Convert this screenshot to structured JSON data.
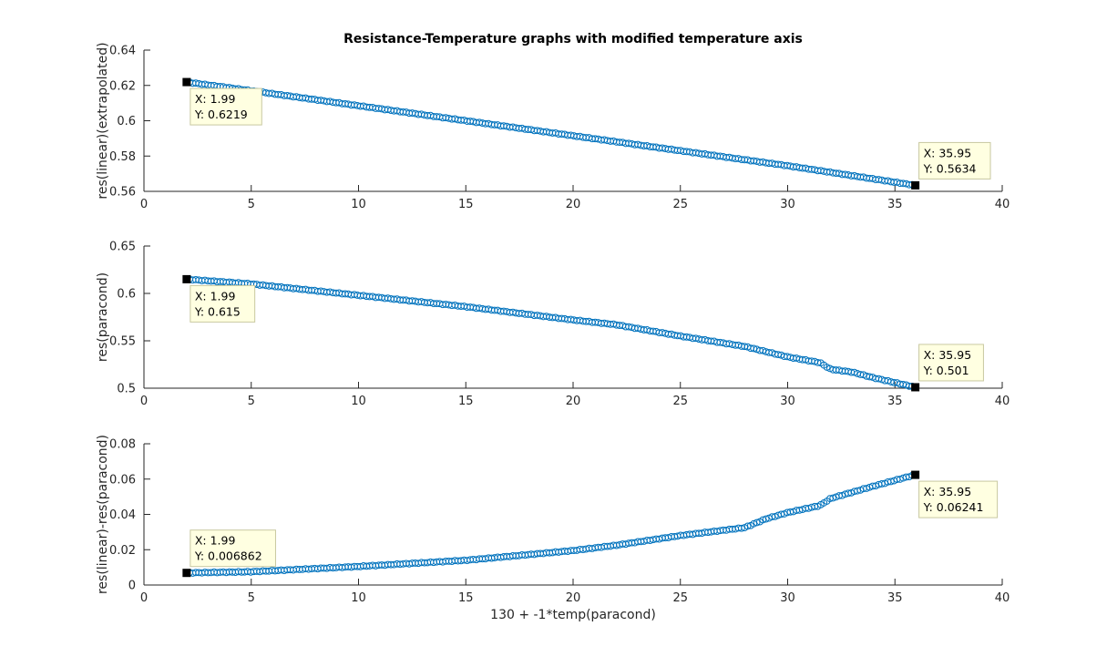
{
  "title": "Resistance-Temperature graphs with modified temperature axis",
  "colors": {
    "series": "#0072BD",
    "tip_bg": "#FFFFE1",
    "tip_border": "#C8C8A0",
    "axis": "#262626"
  },
  "chart_data": [
    {
      "type": "scatter",
      "title": "Resistance-Temperature graphs with modified temperature axis",
      "xlabel": "",
      "ylabel": "res(linear)(extrapolated)",
      "xlim": [
        0,
        40
      ],
      "ylim": [
        0.56,
        0.64
      ],
      "xticks": [
        "0",
        "5",
        "10",
        "15",
        "20",
        "25",
        "30",
        "35",
        "40"
      ],
      "yticks": [
        "0.56",
        "0.58",
        "0.6",
        "0.62",
        "0.64"
      ],
      "series": [
        {
          "x": [
            1.99,
            5,
            10,
            15,
            20,
            25,
            30,
            35.95
          ],
          "y": [
            0.6219,
            0.617,
            0.6085,
            0.6,
            0.5915,
            0.583,
            0.5745,
            0.5634
          ]
        }
      ],
      "datatips": [
        {
          "x": 1.99,
          "y": 0.6219,
          "lines": [
            "X: 1.99",
            "Y: 0.6219"
          ],
          "placement": "below-right"
        },
        {
          "x": 35.95,
          "y": 0.5634,
          "lines": [
            "X: 35.95",
            "Y: 0.5634"
          ],
          "placement": "above-right"
        }
      ]
    },
    {
      "type": "scatter",
      "xlabel": "",
      "ylabel": "res(paracond)",
      "xlim": [
        0,
        40
      ],
      "ylim": [
        0.5,
        0.65
      ],
      "xticks": [
        "0",
        "5",
        "10",
        "15",
        "20",
        "25",
        "30",
        "35",
        "40"
      ],
      "yticks": [
        "0.5",
        "0.55",
        "0.6",
        "0.65"
      ],
      "series": [
        {
          "x": [
            1.99,
            5,
            10,
            15,
            20,
            22,
            25,
            28,
            30,
            31.5,
            32,
            33,
            34,
            35.95
          ],
          "y": [
            0.615,
            0.61,
            0.598,
            0.586,
            0.572,
            0.567,
            0.555,
            0.544,
            0.533,
            0.527,
            0.52,
            0.517,
            0.511,
            0.501
          ]
        }
      ],
      "datatips": [
        {
          "x": 1.99,
          "y": 0.615,
          "lines": [
            "X: 1.99",
            "Y: 0.615"
          ],
          "placement": "below-right"
        },
        {
          "x": 35.95,
          "y": 0.501,
          "lines": [
            "X: 35.95",
            "Y: 0.501"
          ],
          "placement": "above-right"
        }
      ]
    },
    {
      "type": "scatter",
      "xlabel": "130 + -1*temp(paracond)",
      "ylabel": "res(linear)-res(paracond)",
      "xlim": [
        0,
        40
      ],
      "ylim": [
        0,
        0.08
      ],
      "xticks": [
        "0",
        "5",
        "10",
        "15",
        "20",
        "25",
        "30",
        "35",
        "40"
      ],
      "yticks": [
        "0",
        "0.02",
        "0.04",
        "0.06",
        "0.08"
      ],
      "series": [
        {
          "x": [
            1.99,
            5,
            10,
            15,
            20,
            22,
            25,
            28,
            29,
            30,
            31.5,
            32,
            33,
            34,
            35.95
          ],
          "y": [
            0.006862,
            0.0075,
            0.0105,
            0.014,
            0.0195,
            0.0225,
            0.028,
            0.0325,
            0.0375,
            0.041,
            0.045,
            0.049,
            0.0525,
            0.056,
            0.06241
          ]
        }
      ],
      "datatips": [
        {
          "x": 1.99,
          "y": 0.006862,
          "lines": [
            "X: 1.99",
            "Y: 0.006862"
          ],
          "placement": "above-right"
        },
        {
          "x": 35.95,
          "y": 0.06241,
          "lines": [
            "X: 35.95",
            "Y: 0.06241"
          ],
          "placement": "below-right"
        }
      ]
    }
  ]
}
